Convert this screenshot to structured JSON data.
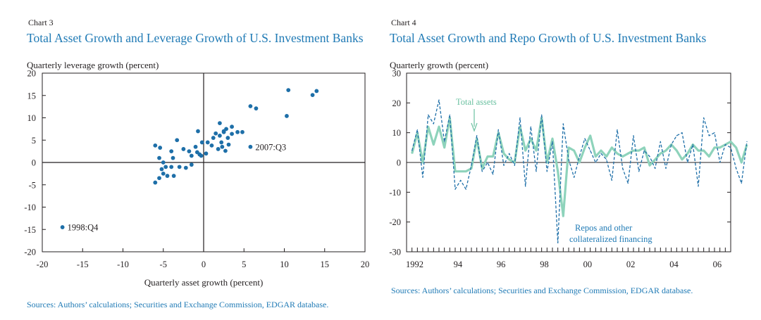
{
  "colors": {
    "title": "#1f7ab5",
    "dots": "#1e6fa8",
    "repo_line": "#1e6fa8",
    "assets_line": "#8ed3bb",
    "assets_label": "#6bc1a1",
    "text": "#231f20"
  },
  "chart_data": [
    {
      "type": "scatter",
      "chart_label": "Chart 3",
      "title": "Total Asset Growth and Leverage Growth of U.S. Investment Banks",
      "ylabel": "Quarterly leverage growth (percent)",
      "xlabel": "Quarterly asset growth (percent)",
      "xlim": [
        -20,
        20
      ],
      "ylim": [
        -20,
        20
      ],
      "x_ticks": [
        "-20",
        "-15",
        "-10",
        "-5",
        "0",
        "5",
        "10",
        "15",
        "20"
      ],
      "y_ticks": [
        "20",
        "15",
        "10",
        "5",
        "0",
        "-5",
        "-10",
        "-15",
        "-20"
      ],
      "annotations": [
        {
          "text": "2007:Q3",
          "x": 5.8,
          "y": 3.5
        },
        {
          "text": "1998:Q4",
          "x": -17.5,
          "y": -14.5
        }
      ],
      "points": [
        [
          -17.5,
          -14.5
        ],
        [
          -6,
          -4.5
        ],
        [
          -5.5,
          -3.5
        ],
        [
          -5,
          -2.5
        ],
        [
          -4.5,
          -3
        ],
        [
          -5.2,
          -1.5
        ],
        [
          -5,
          0
        ],
        [
          -4.7,
          -1
        ],
        [
          -5.5,
          1
        ],
        [
          -6,
          3.8
        ],
        [
          -5.4,
          3.3
        ],
        [
          -4,
          -1
        ],
        [
          -3.7,
          -3
        ],
        [
          -3,
          -1
        ],
        [
          -2.2,
          -1.2
        ],
        [
          -1.5,
          -0.5
        ],
        [
          -3.8,
          1
        ],
        [
          -4,
          2.5
        ],
        [
          -3.3,
          5
        ],
        [
          -2.5,
          3
        ],
        [
          -1.8,
          2.5
        ],
        [
          -1.5,
          1.5
        ],
        [
          -1,
          3.5
        ],
        [
          -0.8,
          2.3
        ],
        [
          -0.5,
          1.8
        ],
        [
          -0.3,
          1.5
        ],
        [
          -0.2,
          4.5
        ],
        [
          -0.7,
          7
        ],
        [
          0.3,
          2
        ],
        [
          0.5,
          4.5
        ],
        [
          1,
          3.8
        ],
        [
          1.5,
          6.5
        ],
        [
          1.2,
          5.5
        ],
        [
          2,
          6
        ],
        [
          2.2,
          4.5
        ],
        [
          2.5,
          7
        ],
        [
          2,
          8.8
        ],
        [
          1.8,
          3
        ],
        [
          2.3,
          3.5
        ],
        [
          2.7,
          2.6
        ],
        [
          3,
          5.5
        ],
        [
          3.1,
          4
        ],
        [
          2.8,
          7.5
        ],
        [
          3.5,
          8
        ],
        [
          4.2,
          6.8
        ],
        [
          4.8,
          6.8
        ],
        [
          3.5,
          6.4
        ],
        [
          2.5,
          6.8
        ],
        [
          5.8,
          3.5
        ],
        [
          5.8,
          12.6
        ],
        [
          6.5,
          12.1
        ],
        [
          10.3,
          10.4
        ],
        [
          10.5,
          16.2
        ],
        [
          13.5,
          15.1
        ],
        [
          14,
          16
        ]
      ]
    },
    {
      "type": "line",
      "chart_label": "Chart 4",
      "title": "Total Asset Growth and Repo Growth of U.S. Investment Banks",
      "ylabel": "Quarterly growth (percent)",
      "xlim": [
        1991.75,
        2006.75
      ],
      "ylim": [
        -30,
        30
      ],
      "x_tick_labels": [
        {
          "year": 1992,
          "label": "1992"
        },
        {
          "year": 1994,
          "label": "94"
        },
        {
          "year": 1996,
          "label": "96"
        },
        {
          "year": 1998,
          "label": "98"
        },
        {
          "year": 2000,
          "label": "00"
        },
        {
          "year": 2002,
          "label": "02"
        },
        {
          "year": 2004,
          "label": "04"
        },
        {
          "year": 2006,
          "label": "06"
        }
      ],
      "y_ticks": [
        "30",
        "20",
        "10",
        "0",
        "-10",
        "-20",
        "-30"
      ],
      "annotations": [
        {
          "text": "Total assets",
          "series": "Total assets"
        },
        {
          "text": "Repos and other",
          "series": "Repos and other collateralized financing"
        },
        {
          "text": "collateralized financing",
          "series": "Repos and other collateralized financing"
        }
      ],
      "series": [
        {
          "name": "Total assets",
          "start": 1992.0,
          "step": 0.25,
          "values": [
            3,
            10,
            0,
            12,
            6,
            12,
            5,
            15,
            -3,
            -3,
            -3,
            -2,
            8,
            -2,
            2,
            2,
            10,
            3,
            1,
            0,
            12,
            4,
            8,
            4,
            15,
            0,
            8,
            -3,
            -18,
            5,
            4,
            0,
            5,
            9,
            2,
            4,
            2,
            5,
            3,
            2,
            3,
            4,
            4,
            5,
            -1,
            1,
            3,
            4,
            6,
            4,
            1,
            3,
            6,
            4,
            4,
            2,
            5,
            5,
            6,
            7,
            5,
            0,
            6
          ]
        },
        {
          "name": "Repos and other collateralized financing",
          "start": 1992.0,
          "step": 0.25,
          "values": [
            4,
            11,
            -5,
            16,
            13,
            21,
            7,
            16,
            -9,
            -6,
            -9,
            -1,
            9,
            -3,
            0,
            -4,
            11,
            -1,
            3,
            -1,
            15,
            -8,
            12,
            -3,
            16,
            -3,
            7,
            -27,
            13,
            1,
            -5,
            2,
            8,
            4,
            0,
            3,
            1,
            -6,
            11,
            -2,
            -7,
            9,
            -3,
            4,
            2,
            -2,
            7,
            -2,
            6,
            9,
            10,
            0,
            6,
            -8,
            15,
            9,
            10,
            0,
            6,
            5,
            -2,
            -7,
            7
          ]
        }
      ]
    }
  ],
  "sources": {
    "left": "Sources: Authors’ calculations; Securities and Exchange Commission, EDGAR database.",
    "right": "Sources: Authors’ calculations; Securities and Exchange Commission, EDGAR database."
  }
}
